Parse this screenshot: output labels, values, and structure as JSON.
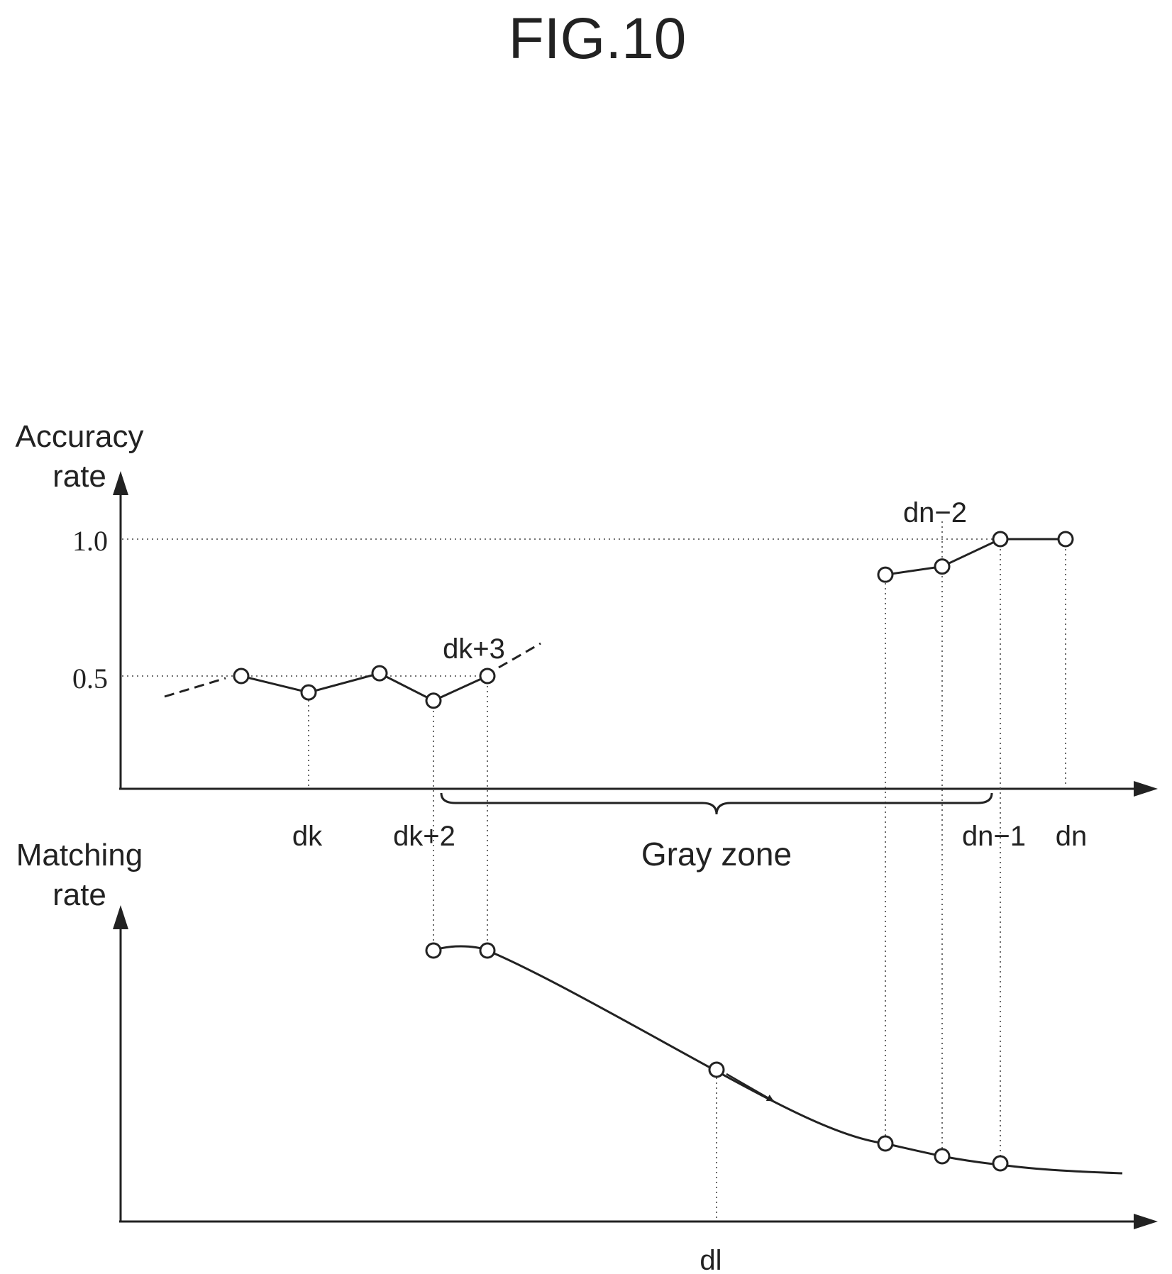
{
  "figure_title": "FIG.10",
  "top_chart": {
    "y_axis_label_line1": "Accuracy",
    "y_axis_label_line2": "rate",
    "y_ticks": [
      "1.0",
      "0.5"
    ],
    "x_labels": [
      "dk",
      "dk+2",
      "dn−1",
      "dn"
    ],
    "point_labels": [
      "dk+3",
      "dn−2"
    ],
    "gray_zone_label": "Gray zone"
  },
  "bottom_chart": {
    "y_axis_label_line1": "Matching",
    "y_axis_label_line2": "rate",
    "x_labels": [
      "dl"
    ]
  },
  "chart_data": [
    {
      "type": "line",
      "title": "",
      "ylabel": "Accuracy rate",
      "yticks": [
        0.5,
        1.0
      ],
      "series": [
        {
          "values": [
            0.5,
            0.44,
            0.51,
            0.41,
            0.5
          ]
        },
        {
          "values": [
            0.87,
            0.9,
            1.0,
            1.0
          ]
        }
      ]
    },
    {
      "type": "line",
      "title": "",
      "ylabel": "Matching rate",
      "note": "decreasing curve"
    }
  ]
}
